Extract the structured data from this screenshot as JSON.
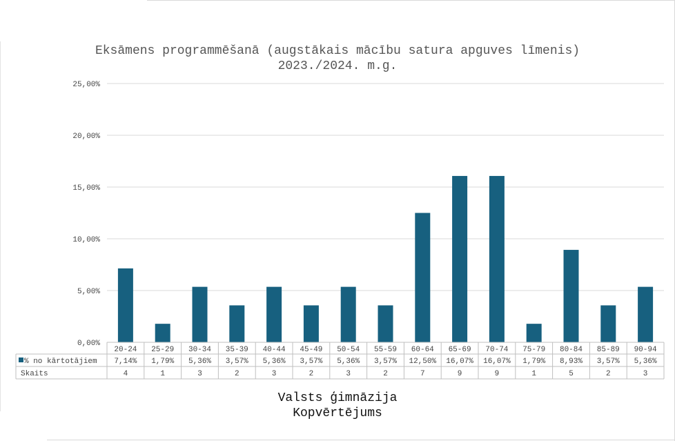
{
  "chart_data": {
    "type": "bar",
    "title": [
      "Eksāmens programmēšanā (augstākais mācību satura apguves līmenis)",
      "2023./2024. m.g."
    ],
    "subtitle": [
      "Valsts ģimnāzija",
      "Kopvērtējums"
    ],
    "categories": [
      "20-24",
      "25-29",
      "30-34",
      "35-39",
      "40-44",
      "45-49",
      "50-54",
      "55-59",
      "60-64",
      "65-69",
      "70-74",
      "75-79",
      "80-84",
      "85-89",
      "90-94"
    ],
    "series": [
      {
        "name": "% no kārtotājiem",
        "values": [
          7.14,
          1.79,
          5.36,
          3.57,
          5.36,
          3.57,
          5.36,
          3.57,
          12.5,
          16.07,
          16.07,
          1.79,
          8.93,
          3.57,
          5.36
        ],
        "labels": [
          "7,14%",
          "1,79%",
          "5,36%",
          "3,57%",
          "5,36%",
          "3,57%",
          "5,36%",
          "3,57%",
          "12,50%",
          "16,07%",
          "16,07%",
          "1,79%",
          "8,93%",
          "3,57%",
          "5,36%"
        ]
      }
    ],
    "table_rows": [
      {
        "name": "Skaits",
        "values": [
          "4",
          "1",
          "3",
          "2",
          "3",
          "2",
          "3",
          "2",
          "7",
          "9",
          "9",
          "1",
          "5",
          "2",
          "3"
        ]
      }
    ],
    "ylim": [
      0,
      25
    ],
    "yticks": [
      0,
      5,
      10,
      15,
      20,
      25
    ],
    "ytick_labels": [
      "0,00%",
      "5,00%",
      "10,00%",
      "15,00%",
      "20,00%",
      "25,00%"
    ],
    "grid": true,
    "colors": {
      "bar": "#17607f",
      "grid": "#d9d9d9",
      "axis": "#bfbfbf"
    }
  }
}
